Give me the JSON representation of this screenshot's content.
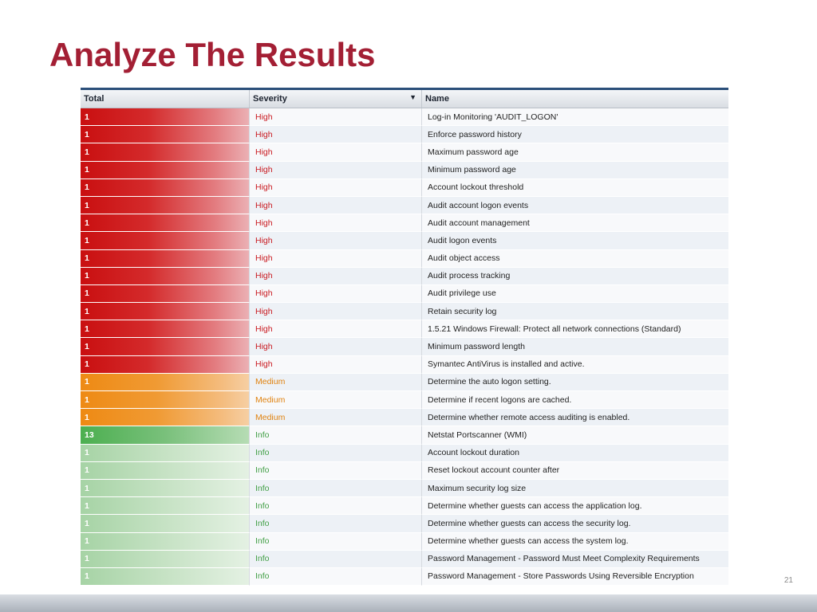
{
  "slide": {
    "title": "Analyze The Results",
    "page_number": "21"
  },
  "table": {
    "columns": [
      "Total",
      "Severity",
      "Name"
    ],
    "sort_indicator": "▼",
    "rows": [
      {
        "total": "1",
        "severity": "High",
        "name": "Log-in Monitoring 'AUDIT_LOGON'"
      },
      {
        "total": "1",
        "severity": "High",
        "name": "Enforce password history"
      },
      {
        "total": "1",
        "severity": "High",
        "name": "Maximum password age"
      },
      {
        "total": "1",
        "severity": "High",
        "name": "Minimum password age"
      },
      {
        "total": "1",
        "severity": "High",
        "name": "Account lockout threshold"
      },
      {
        "total": "1",
        "severity": "High",
        "name": "Audit account logon events"
      },
      {
        "total": "1",
        "severity": "High",
        "name": "Audit account management"
      },
      {
        "total": "1",
        "severity": "High",
        "name": "Audit logon events"
      },
      {
        "total": "1",
        "severity": "High",
        "name": "Audit object access"
      },
      {
        "total": "1",
        "severity": "High",
        "name": "Audit process tracking"
      },
      {
        "total": "1",
        "severity": "High",
        "name": "Audit privilege use"
      },
      {
        "total": "1",
        "severity": "High",
        "name": "Retain security log"
      },
      {
        "total": "1",
        "severity": "High",
        "name": "1.5.21 Windows Firewall: Protect all network connections (Standard)"
      },
      {
        "total": "1",
        "severity": "High",
        "name": "Minimum password length"
      },
      {
        "total": "1",
        "severity": "High",
        "name": "Symantec AntiVirus is installed and active."
      },
      {
        "total": "1",
        "severity": "Medium",
        "name": "Determine the auto logon setting."
      },
      {
        "total": "1",
        "severity": "Medium",
        "name": "Determine if recent logons are cached."
      },
      {
        "total": "1",
        "severity": "Medium",
        "name": "Determine whether remote access auditing is enabled."
      },
      {
        "total": "13",
        "severity": "Info",
        "name": "Netstat Portscanner (WMI)"
      },
      {
        "total": "1",
        "severity": "Info",
        "name": "Account lockout duration"
      },
      {
        "total": "1",
        "severity": "Info",
        "name": "Reset lockout account counter after"
      },
      {
        "total": "1",
        "severity": "Info",
        "name": "Maximum security log size"
      },
      {
        "total": "1",
        "severity": "Info",
        "name": "Determine whether guests can access the application log."
      },
      {
        "total": "1",
        "severity": "Info",
        "name": "Determine whether guests can access the security log."
      },
      {
        "total": "1",
        "severity": "Info",
        "name": "Determine whether guests can access the system log."
      },
      {
        "total": "1",
        "severity": "Info",
        "name": "Password Management - Password Must Meet Complexity Requirements"
      },
      {
        "total": "1",
        "severity": "Info",
        "name": "Password Management - Store Passwords Using Reversible Encryption"
      }
    ]
  },
  "colors": {
    "title": "#a31f34",
    "high": "#c90f10",
    "medium": "#ee8a14",
    "info": "#43a047",
    "header_border": "#2b4f7a"
  }
}
